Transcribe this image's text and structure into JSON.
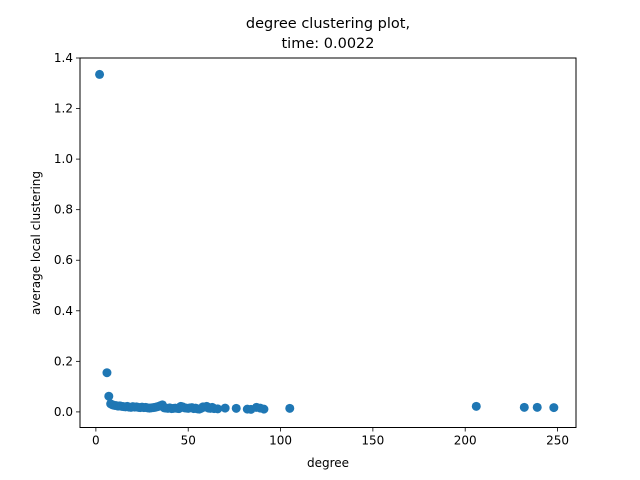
{
  "chart_data": {
    "type": "scatter",
    "title": "degree clustering plot,",
    "subtitle": "time: 0.0022",
    "xlabel": "degree",
    "ylabel": "average local clustering",
    "xlim": [
      -8.6,
      260
    ],
    "ylim": [
      -0.0617,
      1.4
    ],
    "xticks": [
      0,
      50,
      100,
      150,
      200,
      250
    ],
    "yticks": [
      0.0,
      0.2,
      0.4,
      0.6,
      0.8,
      1.0,
      1.2,
      1.4
    ],
    "xtick_labels": [
      "0",
      "50",
      "100",
      "150",
      "200",
      "250"
    ],
    "ytick_labels": [
      "0.0",
      "0.2",
      "0.4",
      "0.6",
      "0.8",
      "1.0",
      "1.2",
      "1.4"
    ],
    "grid": false,
    "marker_color": "#1f77b4",
    "series": [
      {
        "x": [
          2,
          6,
          7,
          8,
          9,
          10,
          11,
          12,
          13,
          14,
          15,
          16,
          17,
          18,
          19,
          20,
          21,
          22,
          23,
          24,
          25,
          26,
          27,
          28,
          29,
          30,
          31,
          32,
          33,
          34,
          35,
          36,
          37,
          38,
          39,
          40,
          41,
          42,
          43,
          44,
          45,
          46,
          47,
          48,
          49,
          50,
          51,
          52,
          53,
          54,
          55,
          56,
          57,
          58,
          59,
          60,
          61,
          62,
          63,
          64,
          66,
          70,
          76,
          82,
          84,
          87,
          89,
          91,
          105,
          206,
          232,
          239,
          248
        ],
        "y": [
          1.335,
          0.155,
          0.062,
          0.032,
          0.028,
          0.026,
          0.025,
          0.023,
          0.024,
          0.022,
          0.021,
          0.02,
          0.022,
          0.019,
          0.018,
          0.021,
          0.019,
          0.02,
          0.018,
          0.017,
          0.019,
          0.017,
          0.018,
          0.016,
          0.015,
          0.016,
          0.017,
          0.018,
          0.02,
          0.022,
          0.025,
          0.028,
          0.016,
          0.015,
          0.014,
          0.016,
          0.013,
          0.014,
          0.015,
          0.014,
          0.013,
          0.022,
          0.02,
          0.016,
          0.015,
          0.014,
          0.016,
          0.017,
          0.013,
          0.015,
          0.012,
          0.011,
          0.014,
          0.02,
          0.019,
          0.022,
          0.015,
          0.014,
          0.018,
          0.013,
          0.012,
          0.015,
          0.014,
          0.011,
          0.01,
          0.018,
          0.015,
          0.011,
          0.014,
          0.022,
          0.018,
          0.018,
          0.017
        ]
      }
    ]
  }
}
